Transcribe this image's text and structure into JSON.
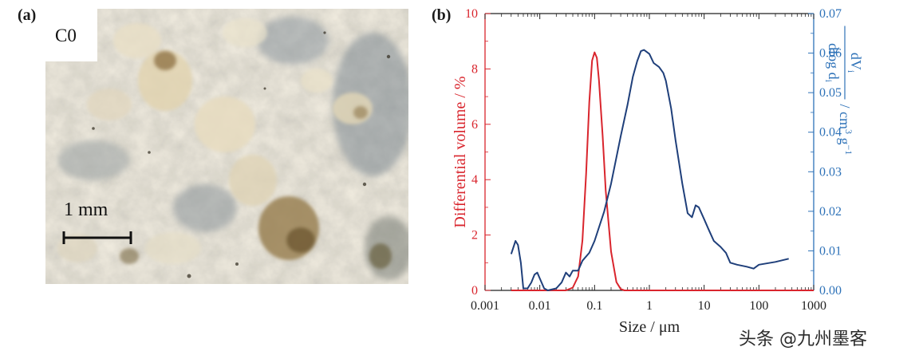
{
  "panel_a": {
    "label": "(a)",
    "sample_label": "C0",
    "scale_bar_label": "1 mm"
  },
  "panel_b": {
    "label": "(b)"
  },
  "watermark": "头条 @九州墨客",
  "colors": {
    "red_series": "#d9252d",
    "blue_series": "#1f3f7a",
    "right_axis": "#2e72b8",
    "left_axis": "#d9252d"
  },
  "chart_data": {
    "type": "line",
    "xlabel": "Size / μm",
    "xscale": "log",
    "xlim": [
      0.001,
      1000
    ],
    "x_ticks": [
      0.001,
      0.01,
      0.1,
      1,
      10,
      100,
      1000
    ],
    "x_tick_labels": [
      "0.001",
      "0.01",
      "0.1",
      "1",
      "10",
      "100",
      "1000"
    ],
    "y_left": {
      "label": "Differential volume / %",
      "lim": [
        0,
        10
      ],
      "ticks": [
        0,
        2,
        4,
        6,
        8,
        10
      ],
      "tick_labels": [
        "0",
        "2",
        "4",
        "6",
        "8",
        "10"
      ]
    },
    "y_right": {
      "label_fraction_numerator": "dV",
      "label_fraction_numerator_sub": "i",
      "label_fraction_denominator": "dlog d",
      "label_fraction_denominator_sub": "i",
      "label_units": " / cm",
      "label_units_sup": "3",
      "label_units_tail": " g",
      "label_units_tail_sup": "−1",
      "lim": [
        0,
        0.07
      ],
      "ticks": [
        0,
        0.01,
        0.02,
        0.03,
        0.04,
        0.05,
        0.06,
        0.07
      ],
      "tick_labels": [
        "0.00",
        "0.01",
        "0.02",
        "0.03",
        "0.04",
        "0.05",
        "0.06",
        "0.07"
      ]
    },
    "series": [
      {
        "axis": "left",
        "color": "#d9252d",
        "x": [
          0.003,
          0.01,
          0.02,
          0.03,
          0.04,
          0.05,
          0.06,
          0.07,
          0.08,
          0.09,
          0.1,
          0.11,
          0.12,
          0.14,
          0.16,
          0.2,
          0.25,
          0.3,
          0.35,
          1000
        ],
        "y": [
          0,
          0,
          0,
          0,
          0.1,
          0.5,
          1.8,
          4.2,
          6.8,
          8.3,
          8.6,
          8.4,
          7.6,
          5.6,
          3.6,
          1.4,
          0.3,
          0.05,
          0,
          0
        ]
      },
      {
        "axis": "right",
        "color": "#1f3f7a",
        "x": [
          0.003,
          0.0036,
          0.004,
          0.0045,
          0.005,
          0.006,
          0.007,
          0.008,
          0.009,
          0.01,
          0.012,
          0.014,
          0.02,
          0.025,
          0.03,
          0.035,
          0.04,
          0.05,
          0.06,
          0.08,
          0.1,
          0.15,
          0.2,
          0.3,
          0.4,
          0.5,
          0.6,
          0.7,
          0.8,
          1.0,
          1.2,
          1.5,
          1.8,
          2.0,
          2.5,
          3.0,
          4.0,
          5.0,
          6.0,
          7.0,
          8.0,
          10.0,
          12.0,
          15.0,
          20.0,
          25.0,
          30.0,
          40.0,
          60.0,
          80.0,
          100.0,
          200.0,
          350.0
        ],
        "y": [
          0.0092,
          0.0125,
          0.0115,
          0.007,
          0.0005,
          0.0005,
          0.002,
          0.004,
          0.0045,
          0.003,
          0.0005,
          0.0,
          0.0005,
          0.002,
          0.0045,
          0.0035,
          0.005,
          0.005,
          0.0075,
          0.0095,
          0.0125,
          0.02,
          0.027,
          0.039,
          0.047,
          0.054,
          0.058,
          0.0605,
          0.0608,
          0.0598,
          0.0575,
          0.0565,
          0.055,
          0.053,
          0.046,
          0.038,
          0.027,
          0.0195,
          0.0185,
          0.0215,
          0.021,
          0.018,
          0.0155,
          0.0125,
          0.011,
          0.0095,
          0.007,
          0.0065,
          0.006,
          0.0055,
          0.0065,
          0.0072,
          0.008
        ]
      }
    ]
  }
}
